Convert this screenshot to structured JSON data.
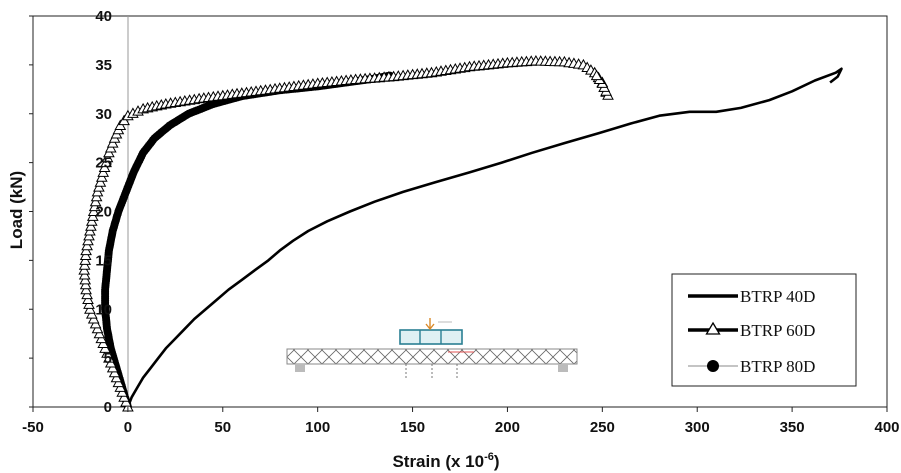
{
  "chart_data": {
    "type": "line",
    "xlabel": "Strain (x 10",
    "xlabel_sup": "-6",
    "xlabel_suffix": ")",
    "ylabel": "Load (kN)",
    "xlim": [
      -50,
      400
    ],
    "ylim": [
      0,
      40
    ],
    "x_ticks": [
      "-50",
      "0",
      "50",
      "100",
      "150",
      "200",
      "250",
      "300",
      "350",
      "400"
    ],
    "y_ticks": [
      "0",
      "5",
      "10",
      "15",
      "20",
      "25",
      "30",
      "35",
      "40"
    ],
    "grid": false,
    "legend_position": "bottom-right",
    "series": [
      {
        "name": "BTRP 40D",
        "marker": "none",
        "points": [
          [
            0,
            0
          ],
          [
            2,
            1
          ],
          [
            5,
            2
          ],
          [
            8,
            3
          ],
          [
            12,
            4
          ],
          [
            16,
            5
          ],
          [
            20,
            6
          ],
          [
            25,
            7
          ],
          [
            30,
            8
          ],
          [
            35,
            9
          ],
          [
            41,
            10
          ],
          [
            47,
            11
          ],
          [
            53,
            12
          ],
          [
            60,
            13
          ],
          [
            67,
            14
          ],
          [
            74,
            15
          ],
          [
            80,
            16
          ],
          [
            87,
            17
          ],
          [
            95,
            18
          ],
          [
            105,
            19
          ],
          [
            117,
            20
          ],
          [
            130,
            21
          ],
          [
            145,
            22
          ],
          [
            162,
            23
          ],
          [
            180,
            24
          ],
          [
            197,
            25
          ],
          [
            213,
            26
          ],
          [
            230,
            27
          ],
          [
            248,
            28
          ],
          [
            265,
            29
          ],
          [
            280,
            29.8
          ],
          [
            296,
            30.2
          ],
          [
            310,
            30.2
          ],
          [
            323,
            30.6
          ],
          [
            338,
            31.4
          ],
          [
            350,
            32.3
          ],
          [
            362,
            33.4
          ],
          [
            373,
            34.2
          ],
          [
            376,
            34.6
          ],
          [
            374,
            33.8
          ],
          [
            370,
            33.2
          ]
        ]
      },
      {
        "name": "BTRP 60D",
        "marker": "triangle",
        "points": [
          [
            0,
            0
          ],
          [
            -4,
            2
          ],
          [
            -8,
            4
          ],
          [
            -12,
            6
          ],
          [
            -16,
            8
          ],
          [
            -20,
            10
          ],
          [
            -22,
            12
          ],
          [
            -23,
            14
          ],
          [
            -22,
            16
          ],
          [
            -20,
            18
          ],
          [
            -18,
            20
          ],
          [
            -16,
            22
          ],
          [
            -13,
            24
          ],
          [
            -10,
            26
          ],
          [
            -7,
            27.5
          ],
          [
            -4,
            28.8
          ],
          [
            0,
            29.8
          ],
          [
            8,
            30.5
          ],
          [
            20,
            31
          ],
          [
            40,
            31.6
          ],
          [
            60,
            32.1
          ],
          [
            80,
            32.6
          ],
          [
            100,
            33.1
          ],
          [
            120,
            33.5
          ],
          [
            140,
            33.8
          ],
          [
            160,
            34.2
          ],
          [
            180,
            34.8
          ],
          [
            200,
            35.2
          ],
          [
            215,
            35.4
          ],
          [
            230,
            35.3
          ],
          [
            240,
            35
          ],
          [
            246,
            34.2
          ],
          [
            250,
            33.2
          ],
          [
            252,
            32.2
          ],
          [
            253,
            31.9
          ],
          [
            250,
            33.1
          ],
          [
            247,
            33.9
          ]
        ]
      },
      {
        "name": "BTRP 80D",
        "marker": "circle",
        "points": [
          [
            0,
            0
          ],
          [
            -3,
            2
          ],
          [
            -6,
            4
          ],
          [
            -9,
            6
          ],
          [
            -11,
            8
          ],
          [
            -12,
            10
          ],
          [
            -12,
            12
          ],
          [
            -11,
            14
          ],
          [
            -10,
            16
          ],
          [
            -8,
            18
          ],
          [
            -5,
            20
          ],
          [
            -1,
            22
          ],
          [
            3,
            24
          ],
          [
            8,
            26
          ],
          [
            14,
            27.5
          ],
          [
            22,
            28.8
          ],
          [
            32,
            30
          ],
          [
            45,
            31
          ],
          [
            60,
            31.8
          ],
          [
            80,
            32.4
          ],
          [
            100,
            32.8
          ],
          [
            115,
            33.2
          ],
          [
            130,
            33.6
          ],
          [
            138,
            33.9
          ]
        ]
      }
    ]
  },
  "legend": {
    "items": [
      {
        "label": "BTRP 40D"
      },
      {
        "label": "BTRP 60D"
      },
      {
        "label": "BTRP 80D"
      }
    ]
  },
  "inset": {
    "icon": "beam-setup-diagram-icon"
  }
}
